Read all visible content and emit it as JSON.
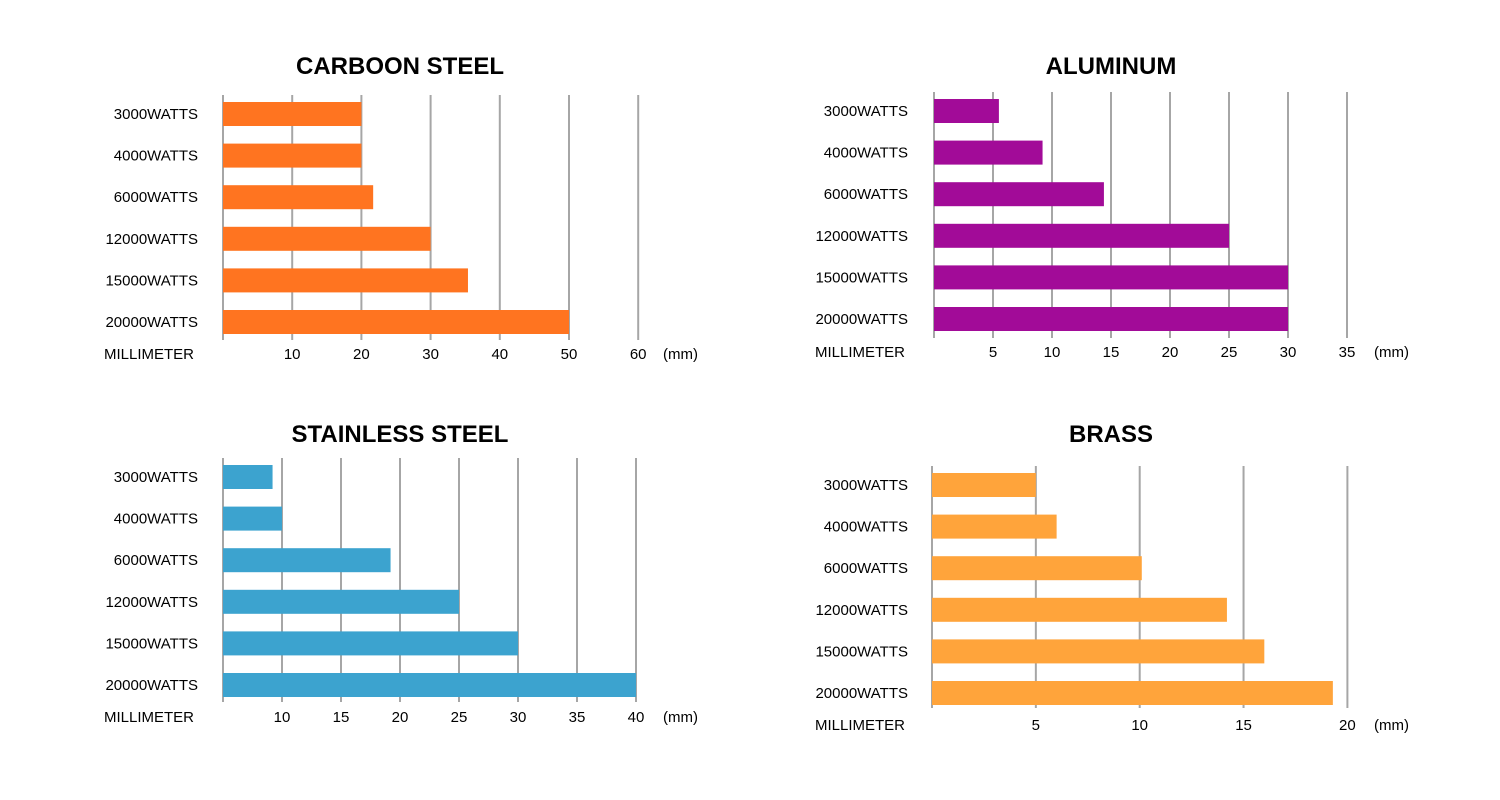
{
  "chart_data": [
    {
      "type": "bar",
      "orientation": "horizontal",
      "title": "CARBOON STEEL",
      "color": "#ff7420",
      "categories": [
        "3000WATTS",
        "4000WATTS",
        "6000WATTS",
        "12000WATTS",
        "15000WATTS",
        "20000WATTS"
      ],
      "values": [
        20,
        20,
        21.7,
        30,
        35.4,
        50
      ],
      "xlabel": "MILLIMETER",
      "unit": "(mm)",
      "xlim": [
        0,
        60
      ],
      "ticks": [
        10,
        20,
        30,
        40,
        50,
        60
      ],
      "grid": true
    },
    {
      "type": "bar",
      "orientation": "horizontal",
      "title": "ALUMINUM",
      "color": "#a20b98",
      "categories": [
        "3000WATTS",
        "4000WATTS",
        "6000WATTS",
        "12000WATTS",
        "15000WATTS",
        "20000WATTS"
      ],
      "values": [
        5.5,
        9.2,
        14.4,
        25,
        30,
        30
      ],
      "xlabel": "MILLIMETER",
      "unit": "(mm)",
      "xlim": [
        0,
        35
      ],
      "ticks": [
        5,
        10,
        15,
        20,
        25,
        30,
        35
      ],
      "grid": true
    },
    {
      "type": "bar",
      "orientation": "horizontal",
      "title": "STAINLESS STEEL",
      "color": "#3ca3cf",
      "categories": [
        "3000WATTS",
        "4000WATTS",
        "6000WATTS",
        "12000WATTS",
        "15000WATTS",
        "20000WATTS"
      ],
      "values": [
        9.2,
        10,
        19.2,
        25,
        30,
        40
      ],
      "xlabel": "MILLIMETER",
      "unit": "(mm)",
      "xlim": [
        5,
        40
      ],
      "ticks": [
        10,
        15,
        20,
        25,
        30,
        35,
        40
      ],
      "grid": true
    },
    {
      "type": "bar",
      "orientation": "horizontal",
      "title": "BRASS",
      "color": "#ffa43b",
      "categories": [
        "3000WATTS",
        "4000WATTS",
        "6000WATTS",
        "12000WATTS",
        "15000WATTS",
        "20000WATTS"
      ],
      "values": [
        5,
        6,
        10.1,
        14.2,
        16,
        19.3
      ],
      "xlabel": "MILLIMETER",
      "unit": "(mm)",
      "xlim": [
        0,
        20
      ],
      "ticks": [
        5,
        10,
        15,
        20
      ],
      "grid": true
    }
  ]
}
